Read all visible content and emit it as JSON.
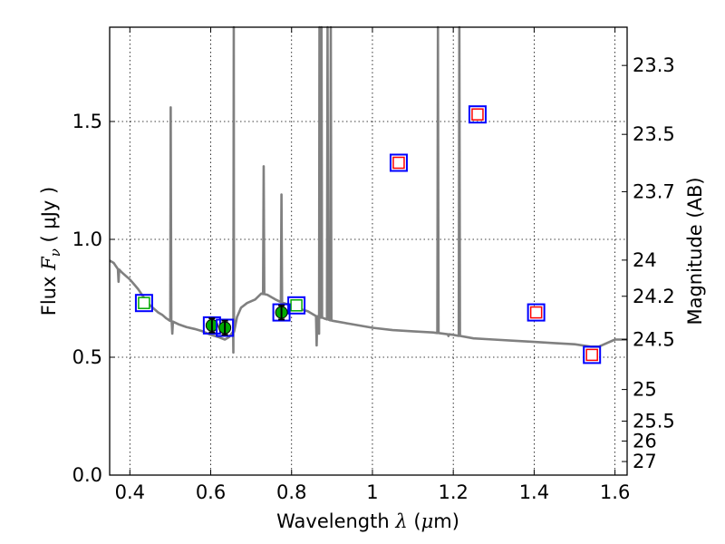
{
  "chart_data": {
    "type": "scatter",
    "xlabel_prefix": "Wavelength",
    "xlabel_symbol": "λ",
    "xlabel_unit_open": "(",
    "xlabel_unit_mu": "μ",
    "xlabel_unit_rest": "m)",
    "ylabel_prefix": "Flux",
    "ylabel_symbol": "F",
    "ylabel_subscript": "ν",
    "ylabel_unit": "( μJy )",
    "y2label": "Magnitude (AB)",
    "xlim": [
      0.35,
      1.63
    ],
    "ylim": [
      0.0,
      1.9
    ],
    "grid": true,
    "x_ticks": [
      0.4,
      0.6,
      0.8,
      1.0,
      1.2,
      1.4,
      1.6
    ],
    "x_tick_labels": [
      "0.4",
      "0.6",
      "0.8",
      "1",
      "1.2",
      "1.4",
      "1.6"
    ],
    "y_ticks": [
      0.0,
      0.5,
      1.0,
      1.5
    ],
    "y_tick_labels": [
      "0.0",
      "0.5",
      "1.0",
      "1.5"
    ],
    "mag_ticks": [
      23.3,
      23.5,
      23.7,
      24,
      24.2,
      24.5,
      25,
      25.5,
      26,
      27
    ],
    "mag_tick_labels": [
      "23.3",
      "23.5",
      "23.7",
      "24",
      "24.2",
      "24.5",
      "25",
      "25.5",
      "26",
      "27"
    ],
    "sed_model": {
      "color": "#808080",
      "continuum": [
        [
          0.35,
          0.91
        ],
        [
          0.36,
          0.9
        ],
        [
          0.37,
          0.875
        ],
        [
          0.38,
          0.86
        ],
        [
          0.39,
          0.845
        ],
        [
          0.4,
          0.83
        ],
        [
          0.41,
          0.81
        ],
        [
          0.42,
          0.79
        ],
        [
          0.43,
          0.765
        ],
        [
          0.44,
          0.74
        ],
        [
          0.45,
          0.72
        ],
        [
          0.46,
          0.705
        ],
        [
          0.47,
          0.69
        ],
        [
          0.48,
          0.68
        ],
        [
          0.49,
          0.665
        ],
        [
          0.5,
          0.655
        ],
        [
          0.52,
          0.64
        ],
        [
          0.54,
          0.628
        ],
        [
          0.56,
          0.62
        ],
        [
          0.58,
          0.61
        ],
        [
          0.6,
          0.595
        ],
        [
          0.62,
          0.585
        ],
        [
          0.635,
          0.575
        ],
        [
          0.645,
          0.585
        ],
        [
          0.655,
          0.6
        ],
        [
          0.665,
          0.67
        ],
        [
          0.675,
          0.71
        ],
        [
          0.69,
          0.73
        ],
        [
          0.71,
          0.745
        ],
        [
          0.725,
          0.77
        ],
        [
          0.74,
          0.765
        ],
        [
          0.76,
          0.745
        ],
        [
          0.78,
          0.73
        ],
        [
          0.8,
          0.72
        ],
        [
          0.82,
          0.705
        ],
        [
          0.84,
          0.695
        ],
        [
          0.86,
          0.675
        ],
        [
          0.88,
          0.665
        ],
        [
          0.9,
          0.655
        ],
        [
          0.95,
          0.64
        ],
        [
          1.0,
          0.625
        ],
        [
          1.05,
          0.615
        ],
        [
          1.1,
          0.61
        ],
        [
          1.15,
          0.605
        ],
        [
          1.2,
          0.595
        ],
        [
          1.25,
          0.58
        ],
        [
          1.3,
          0.575
        ],
        [
          1.35,
          0.57
        ],
        [
          1.4,
          0.565
        ],
        [
          1.45,
          0.56
        ],
        [
          1.5,
          0.555
        ],
        [
          1.54,
          0.545
        ],
        [
          1.56,
          0.545
        ],
        [
          1.6,
          0.575
        ],
        [
          1.63,
          0.575
        ]
      ],
      "emission_lines": [
        {
          "x": 0.372,
          "peak": 0.82
        },
        {
          "x": 0.501,
          "peak": 1.56
        },
        {
          "x": 0.657,
          "peak": 2.5
        },
        {
          "x": 0.731,
          "peak": 1.31
        },
        {
          "x": 0.775,
          "peak": 1.19
        },
        {
          "x": 0.869,
          "peak": 2.5
        },
        {
          "x": 0.874,
          "peak": 2.5
        },
        {
          "x": 0.889,
          "peak": 2.5
        },
        {
          "x": 0.897,
          "peak": 2.5
        },
        {
          "x": 1.162,
          "peak": 2.5
        },
        {
          "x": 1.215,
          "peak": 2.5
        }
      ],
      "absorption_lines": [
        {
          "x": 0.505,
          "depth": 0.6
        },
        {
          "x": 0.656,
          "depth": 0.52
        },
        {
          "x": 0.862,
          "depth": 0.55
        },
        {
          "x": 0.868,
          "depth": 0.6
        },
        {
          "x": 1.188,
          "depth": 0.59
        }
      ]
    },
    "series": [
      {
        "marker": "square",
        "face": "#ffffff",
        "edge": "#00aa00",
        "outline": "#0000ff",
        "points": [
          {
            "x": 0.435,
            "y": 0.73
          },
          {
            "x": 0.812,
            "y": 0.72
          }
        ]
      },
      {
        "marker": "circle",
        "face": "#00aa00",
        "edge": "#000000",
        "outline": "#0000ff",
        "points": [
          {
            "x": 0.603,
            "y": 0.635,
            "err": 0.03
          },
          {
            "x": 0.635,
            "y": 0.625,
            "err": 0.03
          },
          {
            "x": 0.775,
            "y": 0.69,
            "err": 0.03
          }
        ]
      },
      {
        "marker": "square",
        "face": "#ffffff",
        "edge": "#ff0000",
        "outline": "#0000ff",
        "points": [
          {
            "x": 1.065,
            "y": 1.325
          },
          {
            "x": 1.26,
            "y": 1.53
          },
          {
            "x": 1.405,
            "y": 0.69
          },
          {
            "x": 1.543,
            "y": 0.51
          }
        ]
      }
    ]
  }
}
